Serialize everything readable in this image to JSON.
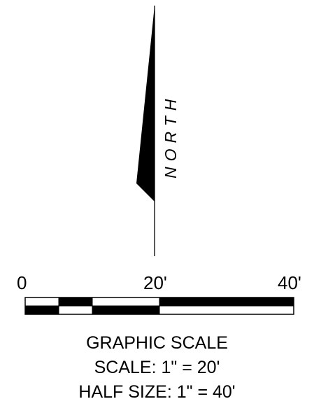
{
  "north_arrow": {
    "label": "NORTH",
    "icon": "north-arrow-icon"
  },
  "graphic_scale": {
    "ticks": [
      "0",
      "20'",
      "40'"
    ],
    "title": "GRAPHIC SCALE",
    "scale_text": "SCALE: 1\" = 20'",
    "half_size_text": "HALF SIZE: 1\" = 40'"
  },
  "colors": {
    "ink": "#000000",
    "paper": "#ffffff"
  }
}
